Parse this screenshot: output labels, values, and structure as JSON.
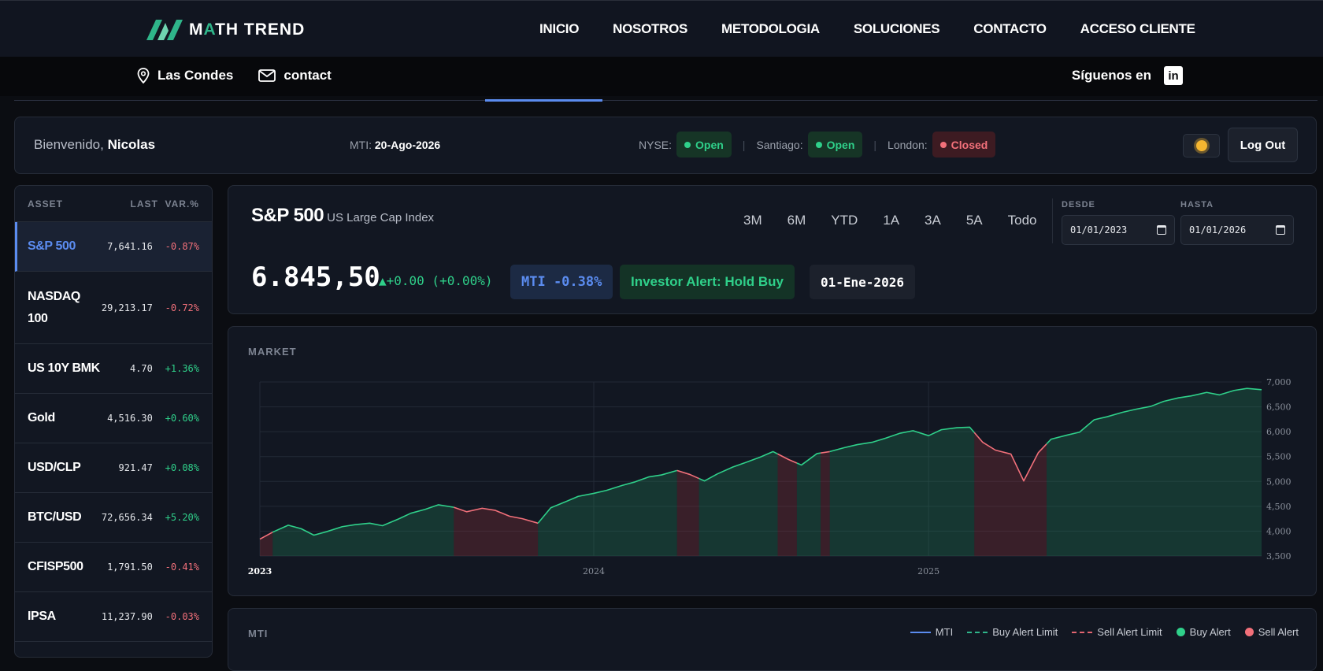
{
  "brand": {
    "name_part1": "M",
    "name_accent": "A",
    "name_part2": "TH TREND"
  },
  "nav": [
    "INICIO",
    "NOSOTROS",
    "METODOLOGIA",
    "SOLUCIONES",
    "CONTACTO",
    "ACCESO CLIENTE"
  ],
  "subbar": {
    "location": "Las Condes",
    "contact": "contact",
    "follow": "Síguenos en",
    "linkedin": "in"
  },
  "welcome": {
    "greeting": "Bienvenido,",
    "user": "Nicolas",
    "mti_label": "MTI:",
    "mti_date": "20-Ago-2026",
    "markets": [
      {
        "label": "NYSE:",
        "status": "Open"
      },
      {
        "label": "Santiago:",
        "status": "Open"
      },
      {
        "label": "London:",
        "status": "Closed"
      }
    ],
    "logout": "Log Out"
  },
  "assets": {
    "headers": [
      "ASSET",
      "LAST",
      "VAR.%"
    ],
    "rows": [
      {
        "name": "S&P 500",
        "last": "7,641.16",
        "var": "-0.87%"
      },
      {
        "name": "NASDAQ 100",
        "last": "29,213.17",
        "var": "-0.72%"
      },
      {
        "name": "US 10Y BMK",
        "last": "4.70",
        "var": "+1.36%"
      },
      {
        "name": "Gold",
        "last": "4,516.30",
        "var": "+0.60%"
      },
      {
        "name": "USD/CLP",
        "last": "921.47",
        "var": "+0.08%"
      },
      {
        "name": "BTC/USD",
        "last": "72,656.34",
        "var": "+5.20%"
      },
      {
        "name": "CFISP500",
        "last": "1,791.50",
        "var": "-0.41%"
      },
      {
        "name": "IPSA",
        "last": "11,237.90",
        "var": "-0.03%"
      }
    ]
  },
  "index": {
    "name": "S&P 500",
    "subtitle": "US Large Cap Index",
    "ranges": [
      "3M",
      "6M",
      "YTD",
      "1A",
      "3A",
      "5A",
      "Todo"
    ],
    "desde_label": "DESDE",
    "desde_value": "01/01/2023",
    "hasta_label": "HASTA",
    "hasta_value": "01/01/2026",
    "price": "6.845,50",
    "change": "▲+0.00 (+0.00%)",
    "mti_tag": "MTI -0.38%",
    "alert_tag": "Investor Alert: Hold Buy",
    "date_tag": "01-Ene-2026"
  },
  "market_label": "MARKET",
  "mti_panel": {
    "label": "MTI",
    "legend": [
      "MTI",
      "Buy Alert Limit",
      "Sell Alert Limit",
      "Buy Alert",
      "Sell Alert"
    ]
  },
  "colors": {
    "buy": "#2fd08a",
    "sell": "#f2707a",
    "accent": "#5b8cf0"
  },
  "chart_data": {
    "type": "area",
    "title": "",
    "xlabel": "",
    "ylabel": "",
    "x_ticks": [
      "2023",
      "2024",
      "2025"
    ],
    "y_ticks": [
      "3,500",
      "4,000",
      "4,500",
      "5,000",
      "5,500",
      "6,000",
      "6,500",
      "7,000"
    ],
    "xlim": [
      "2023-01-01",
      "2025-12-31"
    ],
    "ylim": [
      3500,
      7000
    ],
    "grid": true,
    "series": [
      {
        "x": [
          "2023-01-01",
          "2023-01-15",
          "2023-02-01",
          "2023-02-15",
          "2023-03-01",
          "2023-03-15",
          "2023-04-01",
          "2023-04-15",
          "2023-05-01",
          "2023-05-15",
          "2023-06-01",
          "2023-06-15",
          "2023-07-01",
          "2023-07-15",
          "2023-08-01",
          "2023-08-15",
          "2023-09-01",
          "2023-09-15",
          "2023-10-01",
          "2023-10-15",
          "2023-11-01",
          "2023-11-15",
          "2023-12-01",
          "2023-12-15",
          "2024-01-01",
          "2024-01-15",
          "2024-02-01",
          "2024-02-15",
          "2024-03-01",
          "2024-03-15",
          "2024-04-01",
          "2024-04-15",
          "2024-05-01",
          "2024-05-15",
          "2024-06-01",
          "2024-06-15",
          "2024-07-01",
          "2024-07-15",
          "2024-08-01",
          "2024-08-15",
          "2024-09-01",
          "2024-09-15",
          "2024-10-01",
          "2024-10-15",
          "2024-11-01",
          "2024-11-15",
          "2024-12-01",
          "2024-12-15",
          "2025-01-01",
          "2025-01-15",
          "2025-02-01",
          "2025-02-15",
          "2025-03-01",
          "2025-03-15",
          "2025-04-01",
          "2025-04-15",
          "2025-05-01",
          "2025-05-15",
          "2025-06-01",
          "2025-06-15",
          "2025-07-01",
          "2025-07-15",
          "2025-08-01",
          "2025-08-15",
          "2025-09-01",
          "2025-09-15",
          "2025-10-01",
          "2025-10-15",
          "2025-11-01",
          "2025-11-15",
          "2025-12-01",
          "2025-12-15",
          "2025-12-31"
        ],
        "values": [
          3840,
          3980,
          4120,
          4050,
          3920,
          3990,
          4090,
          4130,
          4160,
          4110,
          4240,
          4360,
          4440,
          4530,
          4480,
          4390,
          4460,
          4420,
          4300,
          4250,
          4160,
          4470,
          4590,
          4700,
          4760,
          4820,
          4920,
          4990,
          5090,
          5130,
          5220,
          5140,
          5010,
          5150,
          5290,
          5380,
          5490,
          5600,
          5440,
          5330,
          5560,
          5600,
          5680,
          5740,
          5790,
          5870,
          5970,
          6020,
          5920,
          6040,
          6080,
          6090,
          5790,
          5630,
          5550,
          5010,
          5580,
          5850,
          5930,
          5990,
          6240,
          6300,
          6390,
          6450,
          6510,
          6610,
          6680,
          6720,
          6790,
          6740,
          6830,
          6870,
          6845
        ]
      }
    ],
    "alert_periods": [
      {
        "type": "sell",
        "from": "2023-01-01",
        "to": "2023-01-15"
      },
      {
        "type": "buy",
        "from": "2023-01-15",
        "to": "2023-08-01"
      },
      {
        "type": "sell",
        "from": "2023-08-01",
        "to": "2023-11-01"
      },
      {
        "type": "buy",
        "from": "2023-11-01",
        "to": "2024-04-01"
      },
      {
        "type": "sell",
        "from": "2024-04-01",
        "to": "2024-04-25"
      },
      {
        "type": "buy",
        "from": "2024-04-25",
        "to": "2024-07-20"
      },
      {
        "type": "sell",
        "from": "2024-07-20",
        "to": "2024-08-10"
      },
      {
        "type": "buy",
        "from": "2024-08-10",
        "to": "2024-09-05"
      },
      {
        "type": "sell",
        "from": "2024-09-05",
        "to": "2024-09-15"
      },
      {
        "type": "buy",
        "from": "2024-09-15",
        "to": "2025-02-20"
      },
      {
        "type": "sell",
        "from": "2025-02-20",
        "to": "2025-05-10"
      },
      {
        "type": "buy",
        "from": "2025-05-10",
        "to": "2025-12-31"
      }
    ]
  }
}
